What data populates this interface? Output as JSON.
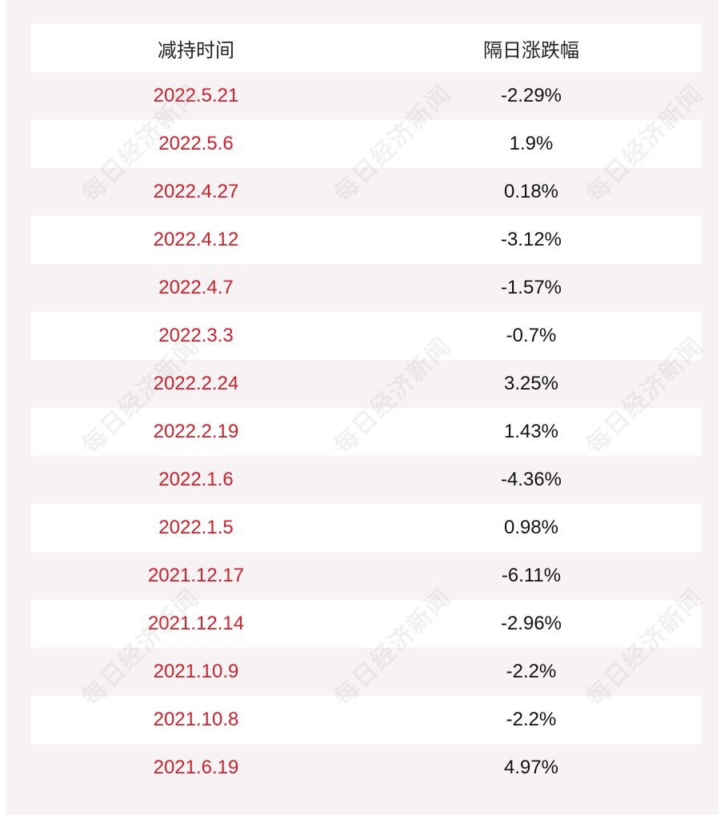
{
  "header": {
    "col_date": "减持时间",
    "col_change": "隔日涨跌幅"
  },
  "rows": [
    {
      "date": "2022.5.21",
      "change": "-2.29%"
    },
    {
      "date": "2022.5.6",
      "change": "1.9%"
    },
    {
      "date": "2022.4.27",
      "change": "0.18%"
    },
    {
      "date": "2022.4.12",
      "change": "-3.12%"
    },
    {
      "date": "2022.4.7",
      "change": "-1.57%"
    },
    {
      "date": "2022.3.3",
      "change": "-0.7%"
    },
    {
      "date": "2022.2.24",
      "change": "3.25%"
    },
    {
      "date": "2022.2.19",
      "change": "1.43%"
    },
    {
      "date": "2022.1.6",
      "change": "-4.36%"
    },
    {
      "date": "2022.1.5",
      "change": "0.98%"
    },
    {
      "date": "2021.12.17",
      "change": "-6.11%"
    },
    {
      "date": "2021.12.14",
      "change": "-2.96%"
    },
    {
      "date": "2021.10.9",
      "change": "-2.2%"
    },
    {
      "date": "2021.10.8",
      "change": "-2.2%"
    },
    {
      "date": "2021.6.19",
      "change": "4.97%"
    }
  ],
  "watermark": "每日经济新闻",
  "colors": {
    "date_text": "#d4202a",
    "change_text": "#111111",
    "row_alt": "#f7f3f4",
    "row_white": "#ffffff"
  }
}
